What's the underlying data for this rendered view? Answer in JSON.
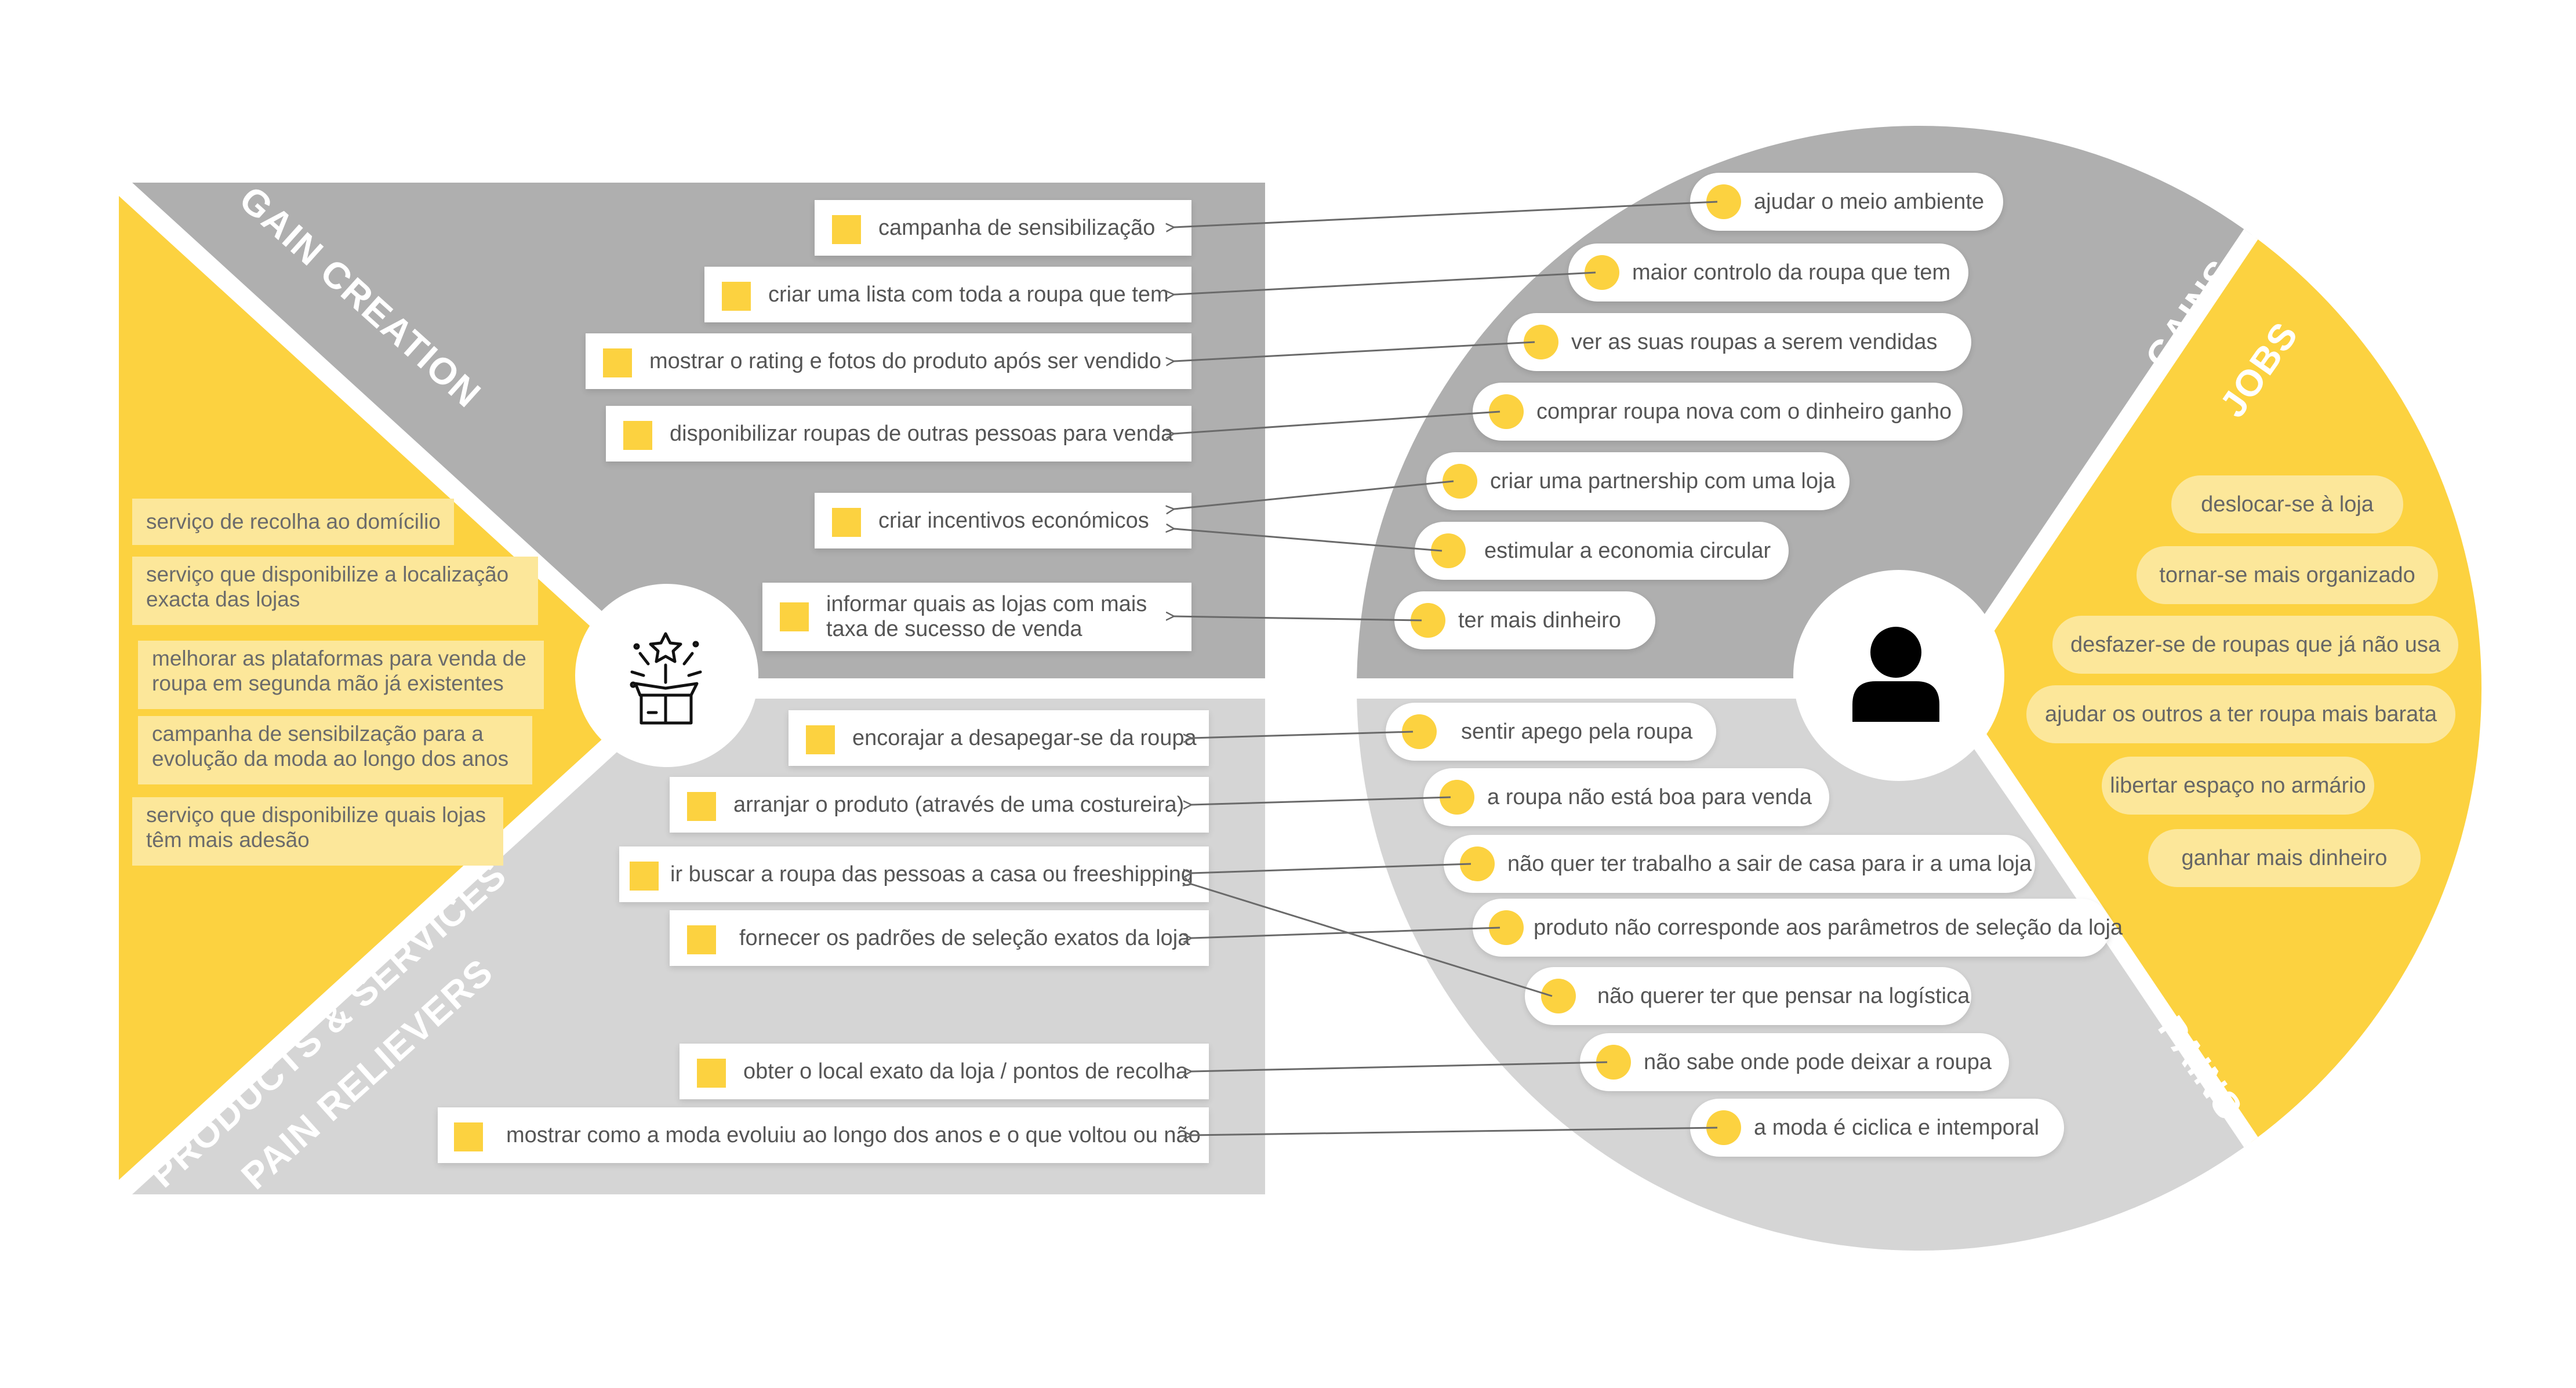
{
  "colors": {
    "yellow": "#FCD240",
    "light_yellow": "#FCE79A",
    "dark_gray": "#AFAFAF",
    "light_gray": "#D5D5D5",
    "text": "#555555",
    "white": "#FFFFFF",
    "arrow": "#666666"
  },
  "icons": {
    "gift": "gift-box-icon",
    "customer": "user-icon"
  },
  "sections": {
    "gain_creation": "GAIN CREATION",
    "products_services": "PRODUCTS & SERVICES",
    "pain_relievers": "PAIN RELIEVERS",
    "gains": "GAINS",
    "jobs": "JOBS",
    "pains": "PAINS"
  },
  "products_services": [
    "serviço de recolha ao domícilio",
    "serviço que disponibilize a localização\nexacta das lojas",
    "melhorar as plataformas para venda de\nroupa em segunda mão já existentes",
    "campanha de sensibilzação para a\nevolução da moda ao longo dos anos",
    "serviço que disponibilize quais lojas\ntêm mais adesão"
  ],
  "gain_creators": [
    "campanha de sensibilização",
    "criar uma lista com toda a roupa que tem",
    "mostrar o rating e fotos do produto após ser vendido",
    "disponibilizar roupas de outras pessoas para venda",
    "criar incentivos económicos",
    "informar quais as lojas com mais\ntaxa de sucesso de venda"
  ],
  "pain_relievers": [
    "encorajar a desapegar-se da roupa",
    "arranjar o produto (através de uma costureira)",
    "ir buscar a roupa das pessoas a casa ou freeshipping",
    "fornecer os padrões de seleção exatos da loja",
    "obter o local exato da loja / pontos de recolha",
    "mostrar como a moda evoluiu ao longo dos anos e o que voltou ou não"
  ],
  "gains": [
    "ajudar o meio ambiente",
    "maior controlo da roupa que tem",
    "ver as suas roupas a serem vendidas",
    "comprar roupa nova com o dinheiro ganho",
    "criar uma partnership com uma loja",
    "estimular a economia circular",
    "ter mais dinheiro"
  ],
  "pains": [
    "sentir apego pela roupa",
    "a roupa não está boa para venda",
    "não quer ter trabalho a sair de casa para ir a uma loja",
    "produto não corresponde aos parâmetros de seleção da loja",
    "não querer ter que pensar na logística",
    "não sabe onde pode deixar a roupa",
    "a moda é ciclica e intemporal"
  ],
  "jobs": [
    "deslocar-se à loja",
    "tornar-se mais organizado",
    "desfazer-se de roupas que já não usa",
    "ajudar os outros a ter roupa mais barata",
    "libertar espaço no armário",
    "ganhar mais dinheiro"
  ]
}
